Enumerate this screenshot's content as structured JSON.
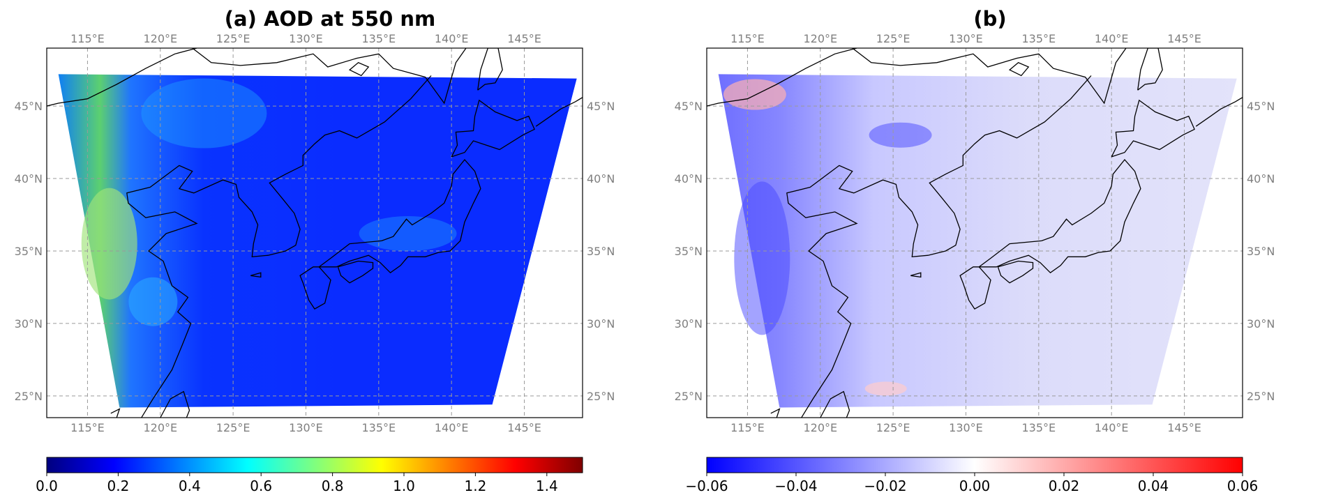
{
  "panel_a": {
    "title": "(a) AOD at 550 nm",
    "colorbar_ticks": [
      "0.0",
      "0.2",
      "0.4",
      "0.6",
      "0.8",
      "1.0",
      "1.2",
      "1.4"
    ],
    "colorbar_range": [
      0.0,
      1.5
    ],
    "colormap": "jet",
    "colormap_colors": [
      "#00007f",
      "#0000ff",
      "#007fff",
      "#00ffff",
      "#7fff7f",
      "#ffff00",
      "#ff7f00",
      "#ff0000",
      "#7f0000"
    ]
  },
  "panel_b": {
    "title": "(b)",
    "colorbar_ticks": [
      "−0.06",
      "−0.04",
      "−0.02",
      "0.00",
      "0.02",
      "0.04",
      "0.06"
    ],
    "colorbar_range": [
      -0.06,
      0.06
    ],
    "colormap": "bwr",
    "colormap_colors": [
      "#0000ff",
      "#ffffff",
      "#ff0000"
    ]
  },
  "map": {
    "lon_labels": [
      "115°E",
      "120°E",
      "125°E",
      "130°E",
      "135°E",
      "140°E",
      "145°E"
    ],
    "lat_labels": [
      "45°N",
      "40°N",
      "35°N",
      "30°N",
      "25°N"
    ],
    "extent_lon": [
      112.2,
      149.0
    ],
    "extent_lat": [
      23.5,
      49.0
    ],
    "gridlines": true,
    "gridline_style": "dashed gray"
  }
}
